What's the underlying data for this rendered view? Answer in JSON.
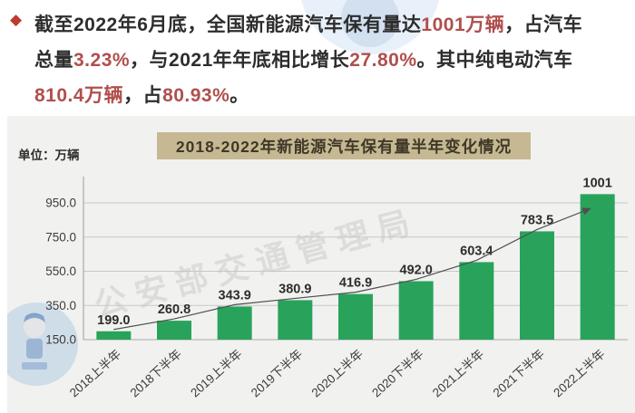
{
  "intro": {
    "bullet": "◆",
    "lines": [
      [
        {
          "t": "截至2022年6月底，全国新能源汽车保有量达",
          "red": false
        },
        {
          "t": "1001万辆",
          "red": true
        },
        {
          "t": "，占汽车",
          "red": false
        }
      ],
      [
        {
          "t": "总量",
          "red": false
        },
        {
          "t": "3.23%",
          "red": true
        },
        {
          "t": "，与2021年年底相比增长",
          "red": false
        },
        {
          "t": "27.80%",
          "red": true
        },
        {
          "t": "。其中纯电动汽车",
          "red": false
        }
      ],
      [
        {
          "t": "810.4万辆",
          "red": true
        },
        {
          "t": "，占",
          "red": false
        },
        {
          "t": "80.93%",
          "red": true
        },
        {
          "t": "。",
          "red": false
        }
      ]
    ]
  },
  "chart": {
    "title": "2018-2022年新能源汽车保有量半年变化情况",
    "unit_label": "单位：万辆",
    "watermark_text": "公安部交通管理局"
  },
  "chart_data": {
    "type": "bar",
    "title": "2018-2022年新能源汽车保有量半年变化情况",
    "categories": [
      "2018上半年",
      "2018下半年",
      "2019上半年",
      "2019下半年",
      "2020上半年",
      "2020下半年",
      "2021上半年",
      "2021下半年",
      "2022上半年"
    ],
    "values": [
      199.0,
      260.8,
      343.9,
      380.9,
      416.9,
      492.0,
      603.4,
      783.5,
      1001
    ],
    "value_labels": [
      "199.0",
      "260.8",
      "343.9",
      "380.9",
      "416.9",
      "492.0",
      "603.4",
      "783.5",
      "1001"
    ],
    "ylabel": "万辆",
    "yticks": [
      150,
      350,
      550,
      750,
      950
    ],
    "ylim": [
      150,
      1080
    ],
    "grid": true,
    "trend_line": true,
    "legend": "none",
    "bar_color": "#29a35b"
  },
  "colors": {
    "red_text": "#b04f4d",
    "bullet_red": "#c03a30",
    "text_dark": "#2d2d2d",
    "bar_green": "#29a35b",
    "title_bg": "#c6b892",
    "title_text": "#3e3827",
    "panel_bg": "#f1f2f0",
    "axis_text": "#3c3c3c",
    "grid_line": "#c7c7c7",
    "axis_line": "#a9a9a9",
    "trend_line": "#4f4f4f"
  }
}
